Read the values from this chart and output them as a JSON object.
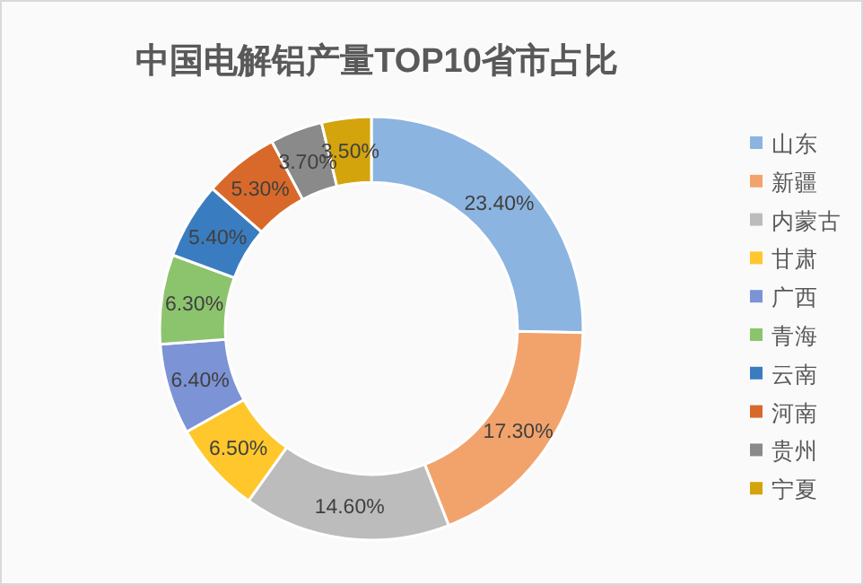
{
  "chart_data": {
    "type": "donut",
    "title": "中国电解铝产量TOP10省市占比",
    "categories": [
      "山东",
      "新疆",
      "内蒙古",
      "甘肃",
      "广西",
      "青海",
      "云南",
      "河南",
      "贵州",
      "宁夏"
    ],
    "values": [
      23.4,
      17.3,
      14.6,
      6.5,
      6.4,
      6.3,
      5.4,
      5.3,
      3.7,
      3.5
    ],
    "value_labels": [
      "23.40%",
      "17.30%",
      "14.60%",
      "6.50%",
      "6.40%",
      "6.30%",
      "5.40%",
      "5.30%",
      "3.70%",
      "3.50%"
    ],
    "colors": [
      "#8cb4e0",
      "#f2a36c",
      "#bcbcbc",
      "#ffc72c",
      "#7c93d6",
      "#8cc46e",
      "#3a7cc0",
      "#d9692a",
      "#8a8a8a",
      "#d4a40c"
    ],
    "legend": "right"
  }
}
